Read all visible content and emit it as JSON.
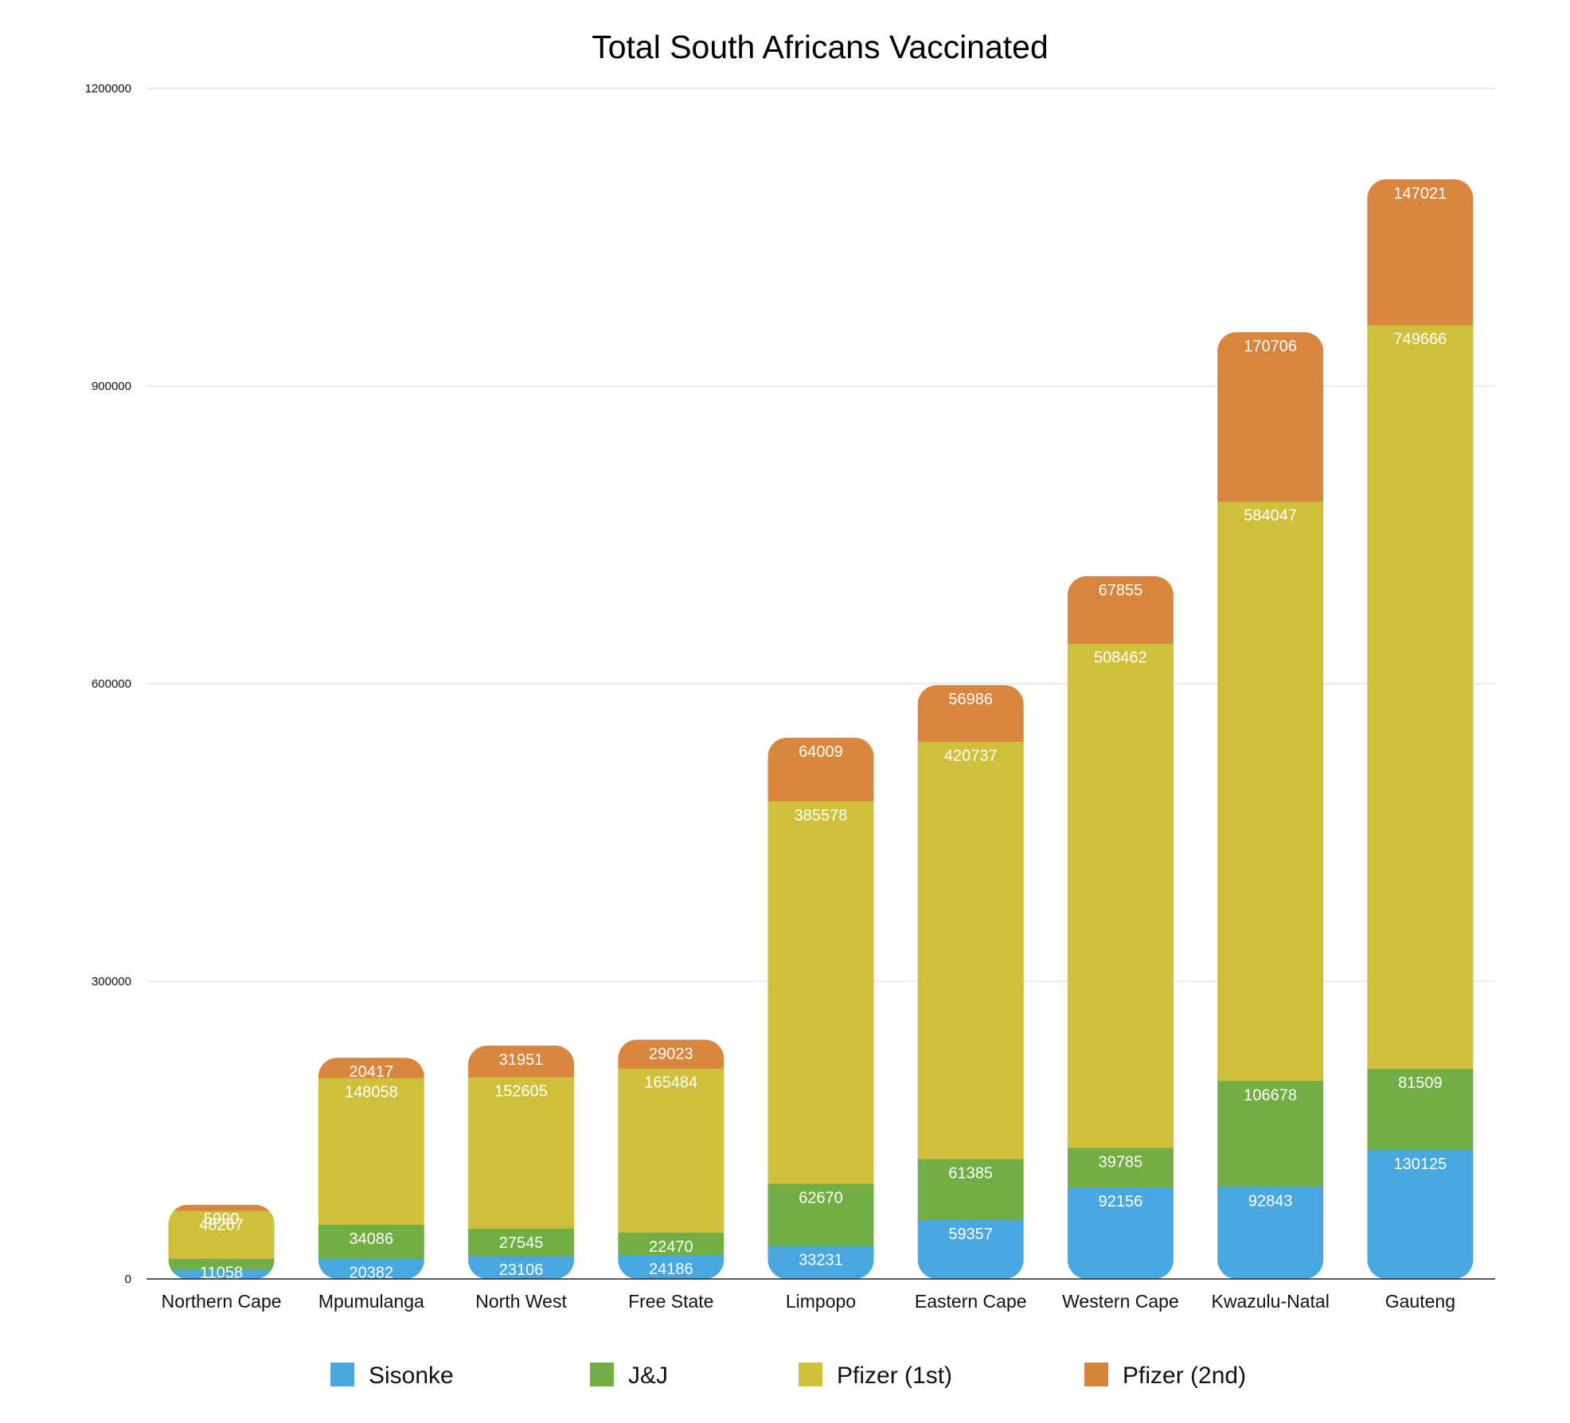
{
  "chart_data": {
    "type": "bar",
    "stacked": true,
    "title": "Total South Africans Vaccinated",
    "xlabel": "",
    "ylabel": "",
    "ylim": [
      0,
      1200000
    ],
    "yticks": [
      "0",
      "300000",
      "600000",
      "900000",
      "1200000"
    ],
    "grid": true,
    "legend_position": "bottom",
    "categories": [
      "Northern Cape",
      "Mpumulanga",
      "North West",
      "Free State",
      "Limpopo",
      "Eastern Cape",
      "Western Cape",
      "Kwazulu-Natal",
      "Gauteng"
    ],
    "series": [
      {
        "name": "Sisonke",
        "color": "#4aa8df",
        "values": [
          9345,
          20382,
          23106,
          24186,
          33231,
          59357,
          92156,
          92843,
          130125
        ]
      },
      {
        "name": "J&J",
        "color": "#72ad44",
        "values": [
          11058,
          34086,
          27545,
          22470,
          62670,
          61385,
          39785,
          106678,
          81509
        ]
      },
      {
        "name": "Pfizer (1st)",
        "color": "#cfc03b",
        "values": [
          48267,
          148058,
          152605,
          165484,
          385578,
          420737,
          508462,
          584047,
          749666
        ]
      },
      {
        "name": "Pfizer (2nd)",
        "color": "#d8853c",
        "values": [
          5990,
          20417,
          31951,
          29023,
          64009,
          56986,
          67855,
          170706,
          147021
        ]
      }
    ]
  }
}
